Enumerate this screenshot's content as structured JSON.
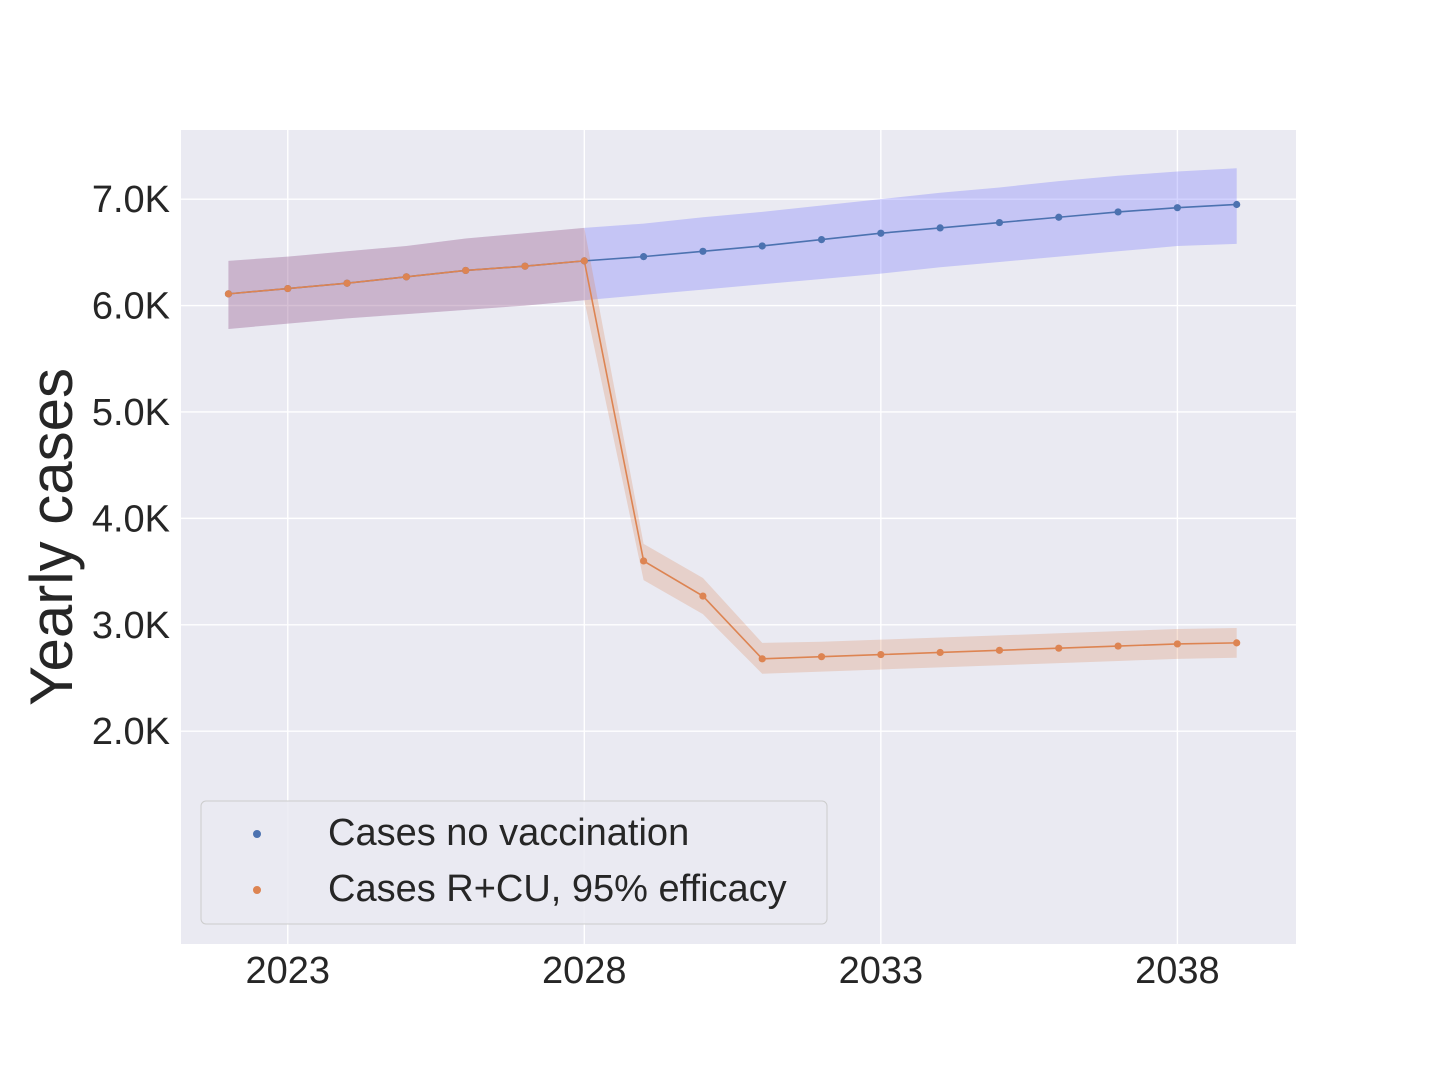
{
  "chart_data": {
    "type": "line",
    "title": "",
    "xlabel": "",
    "ylabel": "Yearly cases",
    "x": [
      2022,
      2023,
      2024,
      2025,
      2026,
      2027,
      2028,
      2029,
      2030,
      2031,
      2032,
      2033,
      2034,
      2035,
      2036,
      2037,
      2038,
      2039
    ],
    "xlim": [
      2021.2,
      2040.0
    ],
    "ylim": [
      0,
      7650
    ],
    "x_ticks": [
      2023,
      2028,
      2033,
      2038
    ],
    "x_tick_labels": [
      "2023",
      "2028",
      "2033",
      "2038"
    ],
    "y_ticks": [
      2000,
      3000,
      4000,
      5000,
      6000,
      7000
    ],
    "y_tick_labels": [
      "2.0K",
      "3.0K",
      "4.0K",
      "5.0K",
      "6.0K",
      "7.0K"
    ],
    "grid": true,
    "legend_position": "lower-left",
    "series": [
      {
        "name": "Cases no vaccination",
        "color": "#4c72b0",
        "band_color": "#6666ff",
        "values": [
          6110,
          6160,
          6210,
          6270,
          6330,
          6370,
          6420,
          6460,
          6510,
          6560,
          6620,
          6680,
          6730,
          6780,
          6830,
          6880,
          6920,
          6950
        ],
        "lower": [
          5780,
          5830,
          5880,
          5920,
          5960,
          6000,
          6050,
          6100,
          6150,
          6200,
          6250,
          6300,
          6360,
          6410,
          6460,
          6510,
          6560,
          6580
        ],
        "upper": [
          6420,
          6460,
          6510,
          6560,
          6630,
          6680,
          6730,
          6770,
          6830,
          6880,
          6940,
          7000,
          7060,
          7110,
          7170,
          7220,
          7260,
          7290
        ]
      },
      {
        "name": "Cases R+CU, 95% efficacy",
        "color": "#dd8452",
        "band_color": "#dd8452",
        "values": [
          6110,
          6160,
          6210,
          6270,
          6330,
          6370,
          6420,
          3600,
          3270,
          2680,
          2700,
          2720,
          2740,
          2760,
          2780,
          2800,
          2820,
          2830
        ],
        "lower": [
          5780,
          5830,
          5880,
          5920,
          5960,
          6000,
          6050,
          3420,
          3100,
          2540,
          2560,
          2580,
          2600,
          2620,
          2640,
          2660,
          2680,
          2690
        ],
        "upper": [
          6420,
          6460,
          6510,
          6560,
          6630,
          6680,
          6730,
          3760,
          3440,
          2830,
          2840,
          2860,
          2880,
          2900,
          2920,
          2940,
          2960,
          2970
        ]
      }
    ]
  }
}
